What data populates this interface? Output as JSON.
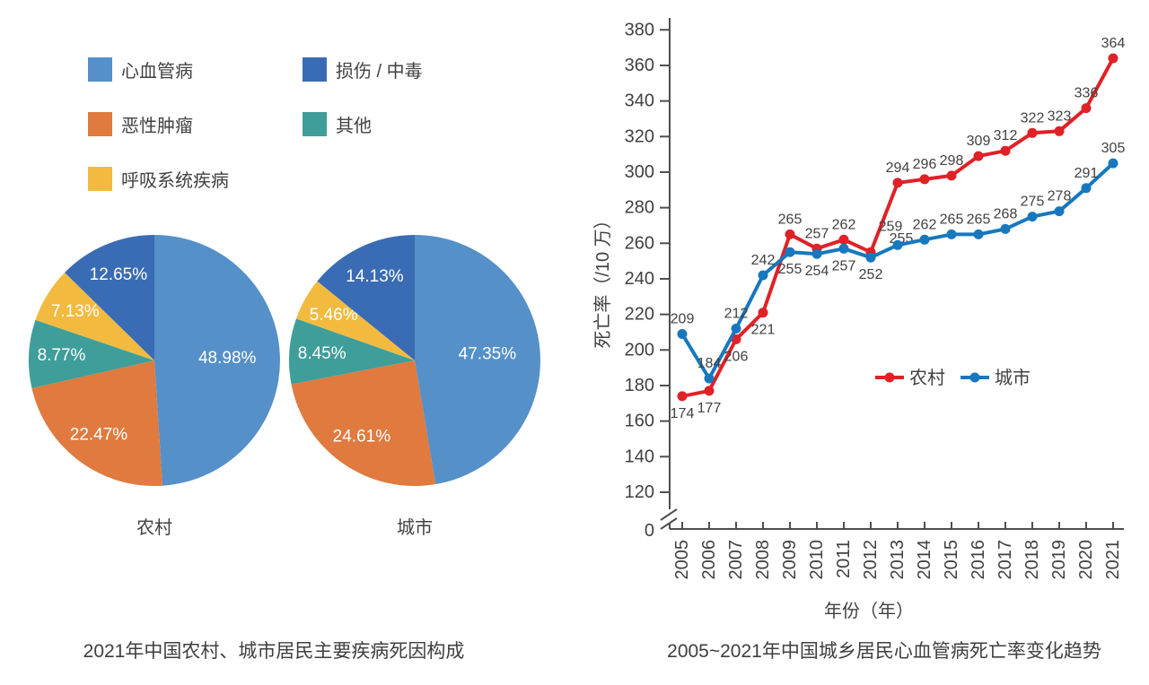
{
  "chart_data": [
    {
      "type": "pie",
      "title": "2021年中国农村、城市居民主要疾病死因构成",
      "legend": [
        {
          "label": "心血管病",
          "color": "#5590C8"
        },
        {
          "label": "恶性肿瘤",
          "color": "#E07A3E"
        },
        {
          "label": "呼吸系统疾病",
          "color": "#F2BB40"
        },
        {
          "label": "损伤 / 中毒",
          "color": "#3A6CB5"
        },
        {
          "label": "其他",
          "color": "#3F9E99"
        }
      ],
      "pies": [
        {
          "label": "农村",
          "slices": [
            {
              "name": "心血管病",
              "value": 48.98,
              "color": "#5590C8"
            },
            {
              "name": "恶性肿瘤",
              "value": 22.47,
              "color": "#E07A3E"
            },
            {
              "name": "其他",
              "value": 8.77,
              "color": "#3F9E99"
            },
            {
              "name": "呼吸系统疾病",
              "value": 7.13,
              "color": "#F2BB40"
            },
            {
              "name": "损伤/中毒",
              "value": 12.65,
              "color": "#3A6CB5"
            }
          ]
        },
        {
          "label": "城市",
          "slices": [
            {
              "name": "心血管病",
              "value": 47.35,
              "color": "#5590C8"
            },
            {
              "name": "恶性肿瘤",
              "value": 24.61,
              "color": "#E07A3E"
            },
            {
              "name": "其他",
              "value": 8.45,
              "color": "#3F9E99"
            },
            {
              "name": "呼吸系统疾病",
              "value": 5.46,
              "color": "#F2BB40"
            },
            {
              "name": "损伤/中毒",
              "value": 14.13,
              "color": "#3A6CB5"
            }
          ]
        }
      ]
    },
    {
      "type": "line",
      "title": "2005~2021年中国城乡居民心血管病死亡率变化趋势",
      "xlabel": "年份（年）",
      "ylabel": "死亡率（/10 万）",
      "yaxis_zero_label": "0",
      "axis_break": true,
      "grid": false,
      "legend_position": "inside-right",
      "ylim_display": [
        120,
        380
      ],
      "yticks": [
        380,
        360,
        340,
        320,
        300,
        280,
        260,
        240,
        220,
        200,
        180,
        160,
        140,
        120
      ],
      "x": [
        2005,
        2006,
        2007,
        2008,
        2009,
        2010,
        2011,
        2012,
        2013,
        2014,
        2015,
        2016,
        2017,
        2018,
        2019,
        2020,
        2021
      ],
      "series": [
        {
          "name": "农村",
          "color": "#E02127",
          "values": [
            174,
            177,
            206,
            221,
            265,
            257,
            262,
            255,
            294,
            296,
            298,
            309,
            312,
            322,
            323,
            336,
            364
          ]
        },
        {
          "name": "城市",
          "color": "#1778BE",
          "values": [
            209,
            184,
            212,
            242,
            255,
            254,
            257,
            252,
            259,
            262,
            265,
            265,
            268,
            275,
            278,
            291,
            305
          ]
        }
      ]
    }
  ]
}
